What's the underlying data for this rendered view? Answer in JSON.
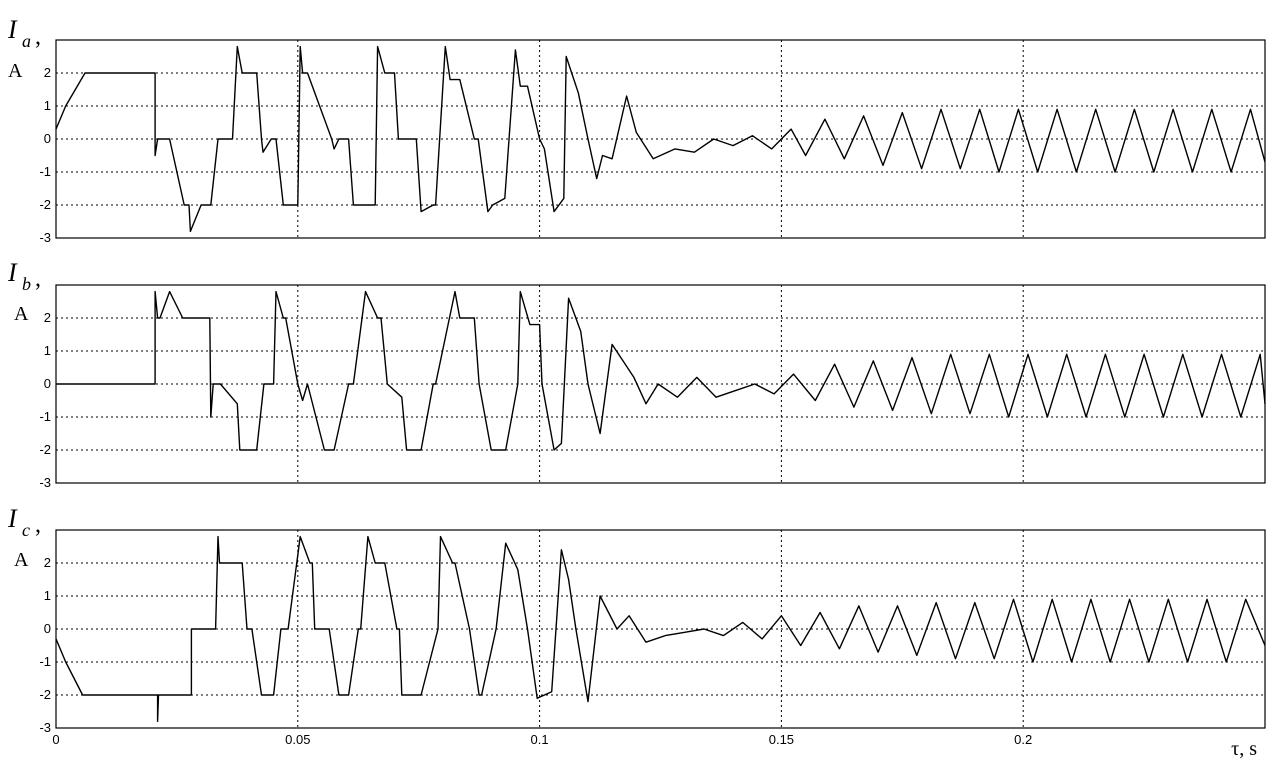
{
  "chart_data": [
    {
      "type": "line",
      "id": "ia",
      "ylabel_symbol": "I",
      "ylabel_subscript": "a",
      "ylabel_unit": "A",
      "xlim": [
        0,
        0.25
      ],
      "ylim": [
        -3,
        3
      ],
      "xticks": [
        0,
        0.05,
        0.1,
        0.15,
        0.2
      ],
      "xtick_labels": [
        "",
        "",
        "",
        "",
        ""
      ],
      "yticks": [
        -3,
        -2,
        -1,
        0,
        1,
        2
      ],
      "ytick_labels": [
        "-3",
        "-2",
        "-1",
        "0",
        "1",
        "2"
      ],
      "grid": true,
      "series": [
        {
          "x": [
            0,
            0.002,
            0.006,
            0.0205,
            0.0205,
            0.021,
            0.0215,
            0.0235,
            0.0265,
            0.0275,
            0.0278,
            0.03,
            0.032,
            0.0335,
            0.0365,
            0.0375,
            0.0385,
            0.0415,
            0.0425,
            0.0428,
            0.0445,
            0.0455,
            0.047,
            0.049,
            0.05,
            0.0505,
            0.051,
            0.052,
            0.057,
            0.0575,
            0.0585,
            0.0605,
            0.0615,
            0.0625,
            0.066,
            0.0665,
            0.068,
            0.07,
            0.0708,
            0.072,
            0.0745,
            0.0755,
            0.078,
            0.0785,
            0.0805,
            0.0815,
            0.0835,
            0.0865,
            0.0873,
            0.0893,
            0.0903,
            0.0928,
            0.095,
            0.096,
            0.0975,
            0.1,
            0.101,
            0.103,
            0.105,
            0.1055,
            0.108,
            0.11,
            0.1118,
            0.113,
            0.115,
            0.118,
            0.12,
            0.1235,
            0.128,
            0.132,
            0.136,
            0.14,
            0.144,
            0.148,
            0.152,
            0.155,
            0.159,
            0.163,
            0.167,
            0.171,
            0.175,
            0.179,
            0.183,
            0.187,
            0.191,
            0.195,
            0.199,
            0.203,
            0.207,
            0.211,
            0.215,
            0.219,
            0.223,
            0.227,
            0.231,
            0.235,
            0.239,
            0.243,
            0.247,
            0.25
          ],
          "y": [
            0.3,
            1.0,
            2.0,
            2.0,
            -0.5,
            0.0,
            0.0,
            0.0,
            -2.0,
            -2.0,
            -2.8,
            -2.0,
            -2.0,
            0.0,
            0.0,
            2.8,
            2.0,
            2.0,
            0.0,
            -0.4,
            0.0,
            0.0,
            -2.0,
            -2.0,
            -2.0,
            2.8,
            2.0,
            2.0,
            0.0,
            -0.3,
            0.0,
            0.0,
            -2.0,
            -2.0,
            -2.0,
            2.8,
            2.0,
            2.0,
            0.0,
            0.0,
            0.0,
            -2.2,
            -2.0,
            -2.0,
            2.8,
            1.8,
            1.8,
            0.0,
            0.0,
            -2.2,
            -2.0,
            -1.8,
            2.7,
            1.6,
            1.6,
            0.0,
            -0.3,
            -2.2,
            -1.8,
            2.5,
            1.4,
            0.0,
            -1.2,
            -0.5,
            -0.6,
            1.3,
            0.2,
            -0.6,
            -0.3,
            -0.4,
            0.0,
            -0.2,
            0.1,
            -0.3,
            0.3,
            -0.5,
            0.6,
            -0.6,
            0.7,
            -0.8,
            0.8,
            -0.9,
            0.9,
            -0.9,
            0.9,
            -1.0,
            0.9,
            -1.0,
            0.9,
            -1.0,
            0.9,
            -1.0,
            0.9,
            -1.0,
            0.9,
            -1.0,
            0.9,
            -1.0,
            0.9,
            -0.7
          ]
        }
      ]
    },
    {
      "type": "line",
      "id": "ib",
      "ylabel_symbol": "I",
      "ylabel_subscript": "b",
      "ylabel_unit": "A",
      "xlim": [
        0,
        0.25
      ],
      "ylim": [
        -3,
        3
      ],
      "xticks": [
        0,
        0.05,
        0.1,
        0.15,
        0.2
      ],
      "xtick_labels": [
        "",
        "",
        "",
        "",
        ""
      ],
      "yticks": [
        -3,
        -2,
        -1,
        0,
        1,
        2
      ],
      "ytick_labels": [
        "-3",
        "-2",
        "-1",
        "0",
        "1",
        "2"
      ],
      "grid": true,
      "series": [
        {
          "x": [
            0,
            0.0205,
            0.0205,
            0.021,
            0.0215,
            0.0235,
            0.0262,
            0.0275,
            0.0278,
            0.0282,
            0.0318,
            0.032,
            0.0325,
            0.034,
            0.0375,
            0.038,
            0.039,
            0.0415,
            0.043,
            0.0435,
            0.045,
            0.0455,
            0.047,
            0.0475,
            0.05,
            0.051,
            0.052,
            0.0555,
            0.0565,
            0.0575,
            0.0605,
            0.0615,
            0.064,
            0.0665,
            0.0672,
            0.0685,
            0.0715,
            0.0725,
            0.075,
            0.0755,
            0.078,
            0.0785,
            0.0825,
            0.0835,
            0.0865,
            0.0875,
            0.09,
            0.0905,
            0.093,
            0.0955,
            0.096,
            0.098,
            0.1,
            0.1005,
            0.103,
            0.1045,
            0.106,
            0.1085,
            0.11,
            0.1125,
            0.115,
            0.1195,
            0.122,
            0.1245,
            0.1285,
            0.1325,
            0.1365,
            0.1405,
            0.1445,
            0.1485,
            0.1525,
            0.157,
            0.161,
            0.165,
            0.169,
            0.173,
            0.177,
            0.181,
            0.185,
            0.189,
            0.193,
            0.197,
            0.201,
            0.205,
            0.209,
            0.213,
            0.217,
            0.221,
            0.225,
            0.229,
            0.233,
            0.237,
            0.241,
            0.245,
            0.249,
            0.25
          ],
          "y": [
            0.0,
            0.0,
            2.8,
            2.0,
            2.0,
            2.8,
            2.0,
            2.0,
            2.0,
            2.0,
            2.0,
            -1.0,
            0.0,
            0.0,
            -0.6,
            -2.0,
            -2.0,
            -2.0,
            0.0,
            0.0,
            0.0,
            2.8,
            2.0,
            2.0,
            0.0,
            -0.5,
            0.0,
            -2.0,
            -2.0,
            -2.0,
            0.0,
            0.0,
            2.8,
            2.0,
            2.0,
            0.0,
            -0.4,
            -2.0,
            -2.0,
            -2.0,
            0.0,
            0.0,
            2.8,
            2.0,
            2.0,
            0.0,
            -2.0,
            -2.0,
            -2.0,
            0.0,
            2.8,
            1.8,
            1.8,
            0.0,
            -2.0,
            -1.8,
            2.6,
            1.6,
            0.0,
            -1.5,
            1.2,
            0.2,
            -0.6,
            0.0,
            -0.4,
            0.2,
            -0.4,
            -0.2,
            0.0,
            -0.3,
            0.3,
            -0.5,
            0.6,
            -0.7,
            0.7,
            -0.8,
            0.8,
            -0.9,
            0.9,
            -0.9,
            0.9,
            -1.0,
            0.9,
            -1.0,
            0.9,
            -1.0,
            0.9,
            -1.0,
            0.9,
            -1.0,
            0.9,
            -1.0,
            0.9,
            -1.0,
            0.9,
            -0.6
          ]
        }
      ]
    },
    {
      "type": "line",
      "id": "ic",
      "ylabel_symbol": "I",
      "ylabel_subscript": "c",
      "ylabel_unit": "A",
      "xlabel": "τ, s",
      "xlim": [
        0,
        0.25
      ],
      "ylim": [
        -3,
        3
      ],
      "xticks": [
        0,
        0.05,
        0.1,
        0.15,
        0.2
      ],
      "xtick_labels": [
        "0",
        "0.05",
        "0.1",
        "0.15",
        "0.2"
      ],
      "yticks": [
        -3,
        -2,
        -1,
        0,
        1,
        2
      ],
      "ytick_labels": [
        "-3",
        "-2",
        "-1",
        "0",
        "1",
        "2"
      ],
      "grid": true,
      "series": [
        {
          "x": [
            0,
            0.002,
            0.0055,
            0.0205,
            0.021,
            0.021,
            0.0212,
            0.028,
            0.028,
            0.0285,
            0.033,
            0.0335,
            0.0338,
            0.034,
            0.0385,
            0.0395,
            0.0405,
            0.0425,
            0.0435,
            0.045,
            0.0465,
            0.048,
            0.0505,
            0.0525,
            0.053,
            0.0535,
            0.0565,
            0.0585,
            0.0605,
            0.0625,
            0.063,
            0.0645,
            0.066,
            0.068,
            0.0705,
            0.071,
            0.0715,
            0.073,
            0.0755,
            0.079,
            0.0795,
            0.082,
            0.0825,
            0.0855,
            0.0875,
            0.088,
            0.091,
            0.093,
            0.0955,
            0.0975,
            0.0995,
            0.1025,
            0.1045,
            0.106,
            0.1075,
            0.11,
            0.1125,
            0.116,
            0.1185,
            0.122,
            0.126,
            0.13,
            0.134,
            0.138,
            0.142,
            0.146,
            0.15,
            0.154,
            0.158,
            0.162,
            0.166,
            0.17,
            0.174,
            0.178,
            0.182,
            0.186,
            0.19,
            0.194,
            0.198,
            0.202,
            0.206,
            0.21,
            0.214,
            0.218,
            0.222,
            0.226,
            0.23,
            0.234,
            0.238,
            0.242,
            0.246,
            0.25
          ],
          "y": [
            -0.3,
            -1.0,
            -2.0,
            -2.0,
            -2.0,
            -2.8,
            -2.0,
            -2.0,
            0.0,
            0.0,
            0.0,
            2.8,
            2.0,
            2.0,
            2.0,
            0.0,
            0.0,
            -2.0,
            -2.0,
            -2.0,
            0.0,
            0.0,
            2.8,
            2.0,
            2.0,
            0.0,
            0.0,
            -2.0,
            -2.0,
            0.0,
            0.0,
            2.8,
            2.0,
            2.0,
            0.0,
            0.0,
            -2.0,
            -2.0,
            -2.0,
            0.0,
            2.8,
            2.0,
            2.0,
            0.0,
            -2.0,
            -2.0,
            0.0,
            2.6,
            1.8,
            0.0,
            -2.1,
            -1.9,
            2.4,
            1.5,
            0.0,
            -2.2,
            1.0,
            0.0,
            0.4,
            -0.4,
            -0.2,
            -0.1,
            0.0,
            -0.2,
            0.2,
            -0.3,
            0.4,
            -0.5,
            0.5,
            -0.6,
            0.7,
            -0.7,
            0.7,
            -0.8,
            0.8,
            -0.9,
            0.8,
            -0.9,
            0.9,
            -1.0,
            0.9,
            -1.0,
            0.9,
            -1.0,
            0.9,
            -1.0,
            0.9,
            -1.0,
            0.9,
            -1.0,
            0.9,
            -0.5
          ]
        }
      ]
    }
  ]
}
